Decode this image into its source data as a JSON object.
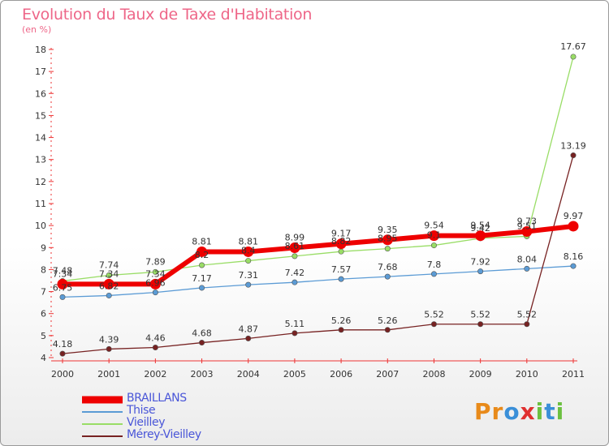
{
  "chart_data": {
    "type": "line",
    "title": "Evolution du Taux de Taxe d'Habitation",
    "subtitle": "(en %)",
    "xlabel": "",
    "ylabel": "",
    "x": [
      "2000",
      "2001",
      "2002",
      "2003",
      "2004",
      "2005",
      "2006",
      "2007",
      "2008",
      "2009",
      "2010",
      "2011"
    ],
    "ylim": [
      4,
      18
    ],
    "yticks": [
      4,
      5,
      6,
      7,
      8,
      9,
      10,
      11,
      12,
      13,
      14,
      15,
      16,
      17,
      18
    ],
    "series": [
      {
        "name": "BRAILLANS",
        "color": "#ee0000",
        "values": [
          7.34,
          7.34,
          7.34,
          8.81,
          8.81,
          8.99,
          9.17,
          9.35,
          9.54,
          9.54,
          9.73,
          9.97
        ],
        "labels": [
          "7.34",
          "7.34",
          "7.34",
          "8.81",
          "8.81",
          "8.99",
          "9.17",
          "9.35",
          "9.54",
          "9.54",
          "9.73",
          "9.97"
        ]
      },
      {
        "name": "Thise",
        "color": "#5b9bd5",
        "values": [
          6.75,
          6.82,
          6.96,
          7.17,
          7.31,
          7.42,
          7.57,
          7.68,
          7.8,
          7.92,
          8.04,
          8.16
        ],
        "labels": [
          "6.75",
          "6.82",
          "6.96",
          "7.17",
          "7.31",
          "7.42",
          "7.57",
          "7.68",
          "7.8",
          "7.92",
          "8.04",
          "8.16"
        ]
      },
      {
        "name": "Vieilley",
        "color": "#99dd66",
        "values": [
          7.48,
          7.74,
          7.89,
          8.2,
          8.4,
          8.61,
          8.82,
          8.95,
          9.1,
          9.42,
          9.51,
          17.67
        ],
        "labels": [
          "7.48",
          "7.74",
          "7.89",
          "8.2",
          "8.4",
          "8.61",
          "8.82",
          "8.95",
          "9.1",
          "9.42",
          "9.51",
          "17.67"
        ]
      },
      {
        "name": "Mérey-Vieilley",
        "color": "#772222",
        "values": [
          4.18,
          4.39,
          4.46,
          4.68,
          4.87,
          5.11,
          5.26,
          5.26,
          5.52,
          5.52,
          5.52,
          13.19
        ],
        "labels": [
          "4.18",
          "4.39",
          "4.46",
          "4.68",
          "4.87",
          "5.11",
          "5.26",
          "5.26",
          "5.52",
          "5.52",
          "5.52",
          "13.19"
        ]
      }
    ]
  },
  "legend": {
    "items": [
      "BRAILLANS",
      "Thise",
      "Vieilley",
      "Mérey-Vieilley"
    ]
  },
  "logo": {
    "letters": [
      "P",
      "r",
      "o",
      "x",
      "i",
      "t",
      "i"
    ],
    "colors": [
      "#e88a1a",
      "#e88a1a",
      "#3a8fd8",
      "#e03030",
      "#6cc040",
      "#3a8fd8",
      "#6cc040"
    ]
  }
}
